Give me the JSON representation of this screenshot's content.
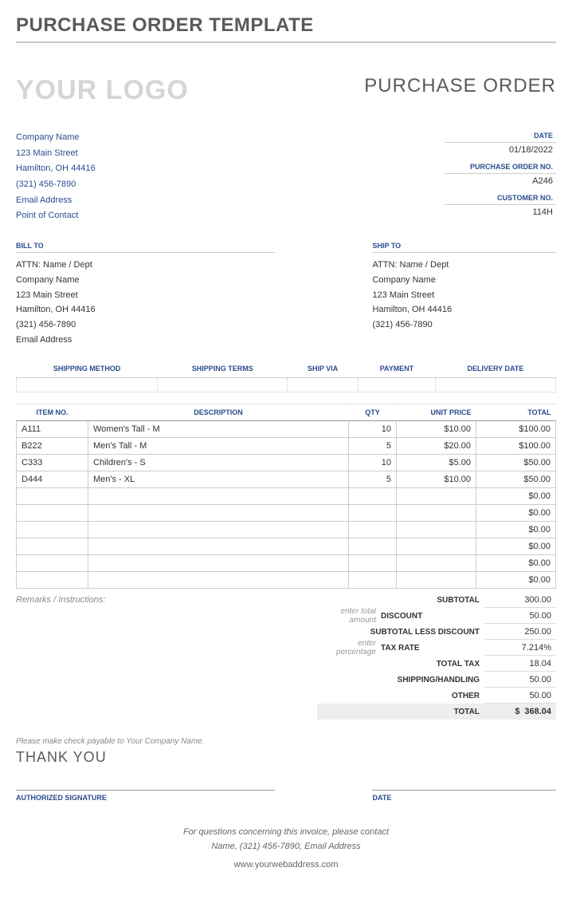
{
  "colors": {
    "accent": "#2a4d8f",
    "muted": "#5a5a5a",
    "logo": "#d5d5d5",
    "border": "#cccccc",
    "total_bg": "#eeeeee"
  },
  "page_title": "PURCHASE ORDER TEMPLATE",
  "logo_text": "YOUR LOGO",
  "doc_title": "PURCHASE ORDER",
  "company": {
    "name": "Company Name",
    "street": "123 Main Street",
    "city": "Hamilton, OH 44416",
    "phone": "(321) 456-7890",
    "email": "Email Address",
    "contact": "Point of Contact"
  },
  "meta": {
    "date_label": "DATE",
    "date_value": "01/18/2022",
    "po_label": "PURCHASE ORDER NO.",
    "po_value": "A246",
    "cust_label": "CUSTOMER NO.",
    "cust_value": "114H"
  },
  "bill_to": {
    "header": "BILL TO",
    "attn": "ATTN: Name / Dept",
    "company": "Company Name",
    "street": "123 Main Street",
    "city": "Hamilton, OH 44416",
    "phone": "(321) 456-7890",
    "email": "Email Address"
  },
  "ship_to": {
    "header": "SHIP TO",
    "attn": "ATTN: Name / Dept",
    "company": "Company Name",
    "street": "123 Main Street",
    "city": "Hamilton, OH 44416",
    "phone": "(321) 456-7890"
  },
  "ship_table": {
    "headers": [
      "SHIPPING METHOD",
      "SHIPPING TERMS",
      "SHIP VIA",
      "PAYMENT",
      "DELIVERY DATE"
    ]
  },
  "items": {
    "headers": [
      "ITEM NO.",
      "DESCRIPTION",
      "QTY",
      "UNIT PRICE",
      "TOTAL"
    ],
    "rows": [
      {
        "item": "A111",
        "desc": "Women's Tall - M",
        "qty": "10",
        "price": "$10.00",
        "total": "$100.00"
      },
      {
        "item": "B222",
        "desc": "Men's Tall - M",
        "qty": "5",
        "price": "$20.00",
        "total": "$100.00"
      },
      {
        "item": "C333",
        "desc": "Children's - S",
        "qty": "10",
        "price": "$5.00",
        "total": "$50.00"
      },
      {
        "item": "D444",
        "desc": "Men's - XL",
        "qty": "5",
        "price": "$10.00",
        "total": "$50.00"
      },
      {
        "item": "",
        "desc": "",
        "qty": "",
        "price": "",
        "total": "$0.00"
      },
      {
        "item": "",
        "desc": "",
        "qty": "",
        "price": "",
        "total": "$0.00"
      },
      {
        "item": "",
        "desc": "",
        "qty": "",
        "price": "",
        "total": "$0.00"
      },
      {
        "item": "",
        "desc": "",
        "qty": "",
        "price": "",
        "total": "$0.00"
      },
      {
        "item": "",
        "desc": "",
        "qty": "",
        "price": "",
        "total": "$0.00"
      },
      {
        "item": "",
        "desc": "",
        "qty": "",
        "price": "",
        "total": "$0.00"
      }
    ]
  },
  "remarks_label": "Remarks / Instructions:",
  "totals": {
    "subtotal_label": "SUBTOTAL",
    "subtotal": "300.00",
    "discount_hint": "enter total amount",
    "discount_label": "DISCOUNT",
    "discount": "50.00",
    "subless_label": "SUBTOTAL LESS DISCOUNT",
    "subless": "250.00",
    "taxrate_hint": "enter percentage",
    "taxrate_label": "TAX RATE",
    "taxrate": "7.214%",
    "tax_label": "TOTAL TAX",
    "tax": "18.04",
    "shiphand_label": "SHIPPING/HANDLING",
    "shiphand": "50.00",
    "other_label": "OTHER",
    "other": "50.00",
    "total_label": "TOTAL",
    "total_currency": "$",
    "total": "368.04"
  },
  "payable": "Please make check payable to Your Company Name.",
  "thankyou": "THANK YOU",
  "signature": {
    "sig_label": "AUTHORIZED SIGNATURE",
    "date_label": "DATE"
  },
  "footer": {
    "line1": "For questions concerning this invoice, please contact",
    "line2": "Name, (321) 456-7890, Email Address",
    "web": "www.yourwebaddress.com"
  }
}
